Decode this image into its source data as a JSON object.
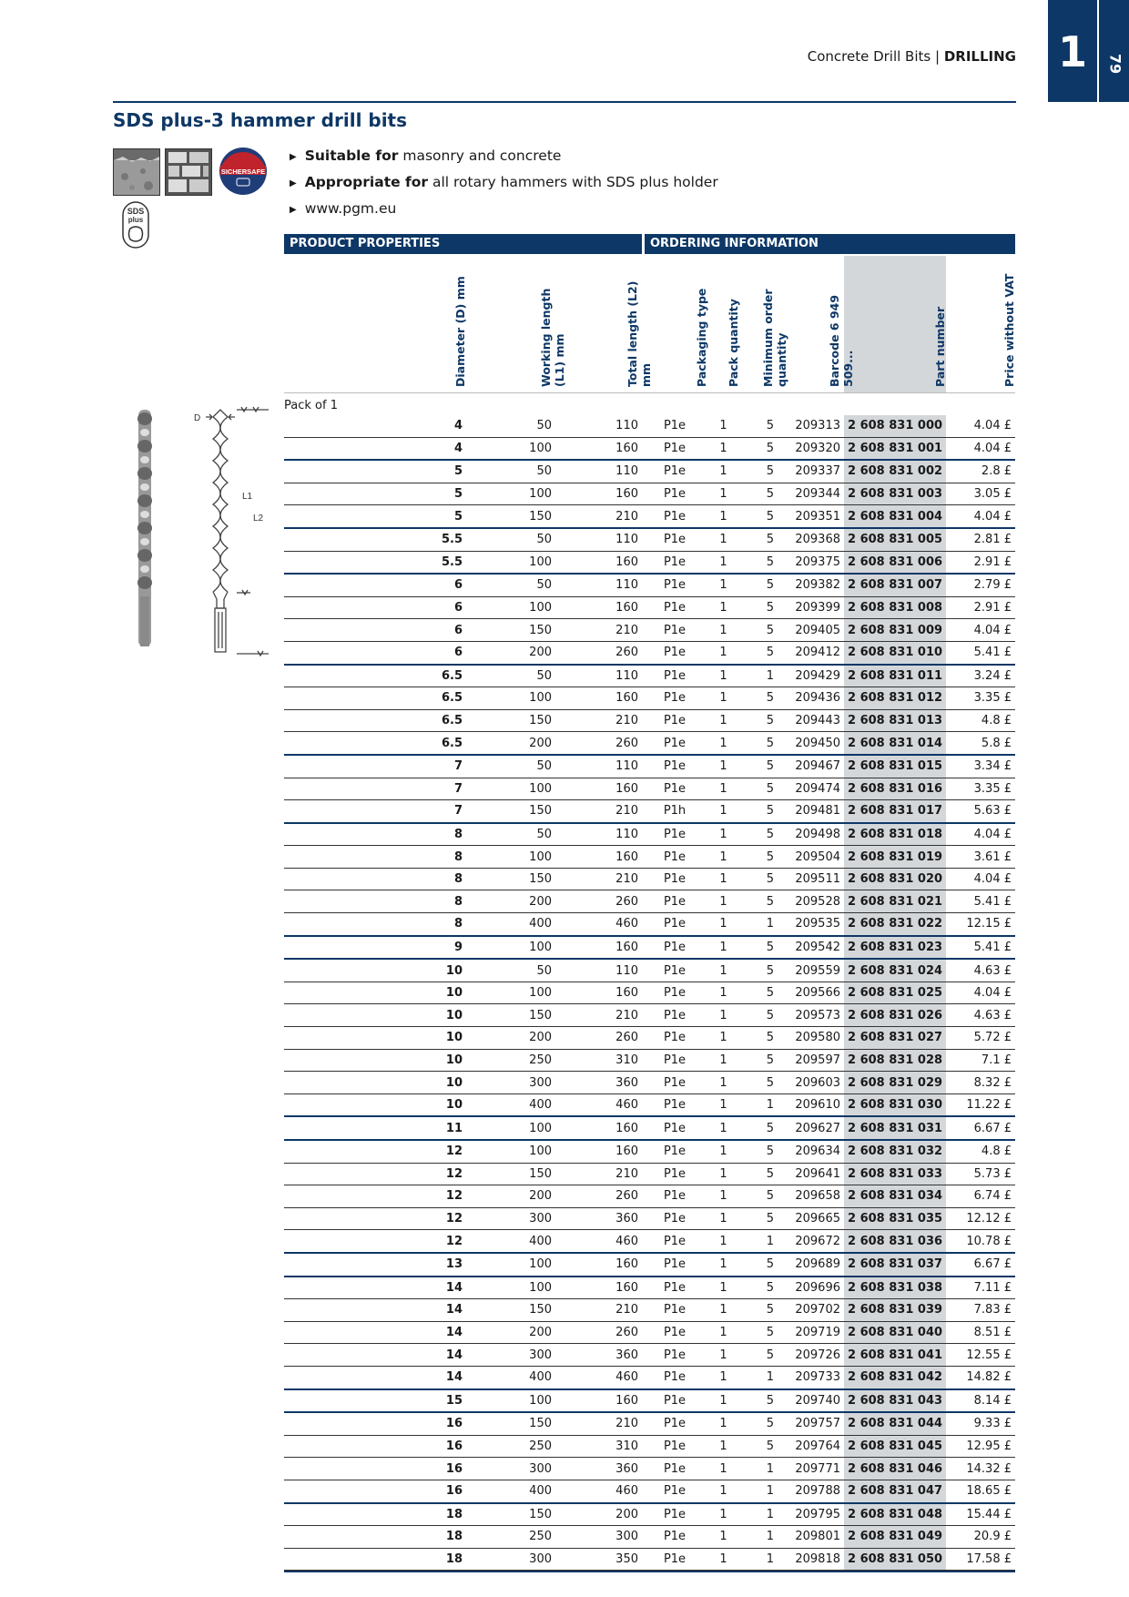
{
  "tab": {
    "chapter": "1",
    "page": "79"
  },
  "header": {
    "category": "Concrete Drill Bits",
    "separator": "|",
    "section": "DRILLING"
  },
  "title": "SDS plus-3 hammer drill bits",
  "icons": [
    "masonry-icon",
    "concrete-icon",
    "sicher-safe-badge",
    "sds-plus-icon"
  ],
  "badge_text": "SICHERSAFE",
  "sds_text": "SDS plus",
  "bullets": [
    {
      "bold": "Suitable for",
      "text": " masonry and concrete"
    },
    {
      "bold": "Appropriate for",
      "text": " all rotary hammers with SDS plus holder"
    },
    {
      "bold": "",
      "text": "www.pgm.eu"
    }
  ],
  "sections": {
    "product": "PRODUCT PROPERTIES",
    "ordering": "ORDERING INFORMATION"
  },
  "columns": [
    "Diameter (D) mm",
    "Working length (L1) mm",
    "Total length (L2) mm",
    "Packaging type",
    "Pack quantity",
    "Minimum order quantity",
    "Barcode 6 949 509...",
    "Part number",
    "Price without VAT"
  ],
  "diagram_labels": {
    "d": "D",
    "l1": "L1",
    "l2": "L2"
  },
  "group_label": "Pack of 1",
  "rows": [
    [
      "4",
      "50",
      "110",
      "P1e",
      "1",
      "5",
      "209313",
      "2 608 831 000",
      "4.04 £"
    ],
    [
      "4",
      "100",
      "160",
      "P1e",
      "1",
      "5",
      "209320",
      "2 608 831 001",
      "4.04 £"
    ],
    [
      "5",
      "50",
      "110",
      "P1e",
      "1",
      "5",
      "209337",
      "2 608 831 002",
      "2.8 £"
    ],
    [
      "5",
      "100",
      "160",
      "P1e",
      "1",
      "5",
      "209344",
      "2 608 831 003",
      "3.05 £"
    ],
    [
      "5",
      "150",
      "210",
      "P1e",
      "1",
      "5",
      "209351",
      "2 608 831 004",
      "4.04 £"
    ],
    [
      "5.5",
      "50",
      "110",
      "P1e",
      "1",
      "5",
      "209368",
      "2 608 831 005",
      "2.81 £"
    ],
    [
      "5.5",
      "100",
      "160",
      "P1e",
      "1",
      "5",
      "209375",
      "2 608 831 006",
      "2.91 £"
    ],
    [
      "6",
      "50",
      "110",
      "P1e",
      "1",
      "5",
      "209382",
      "2 608 831 007",
      "2.79 £"
    ],
    [
      "6",
      "100",
      "160",
      "P1e",
      "1",
      "5",
      "209399",
      "2 608 831 008",
      "2.91 £"
    ],
    [
      "6",
      "150",
      "210",
      "P1e",
      "1",
      "5",
      "209405",
      "2 608 831 009",
      "4.04 £"
    ],
    [
      "6",
      "200",
      "260",
      "P1e",
      "1",
      "5",
      "209412",
      "2 608 831 010",
      "5.41 £"
    ],
    [
      "6.5",
      "50",
      "110",
      "P1e",
      "1",
      "1",
      "209429",
      "2 608 831 011",
      "3.24 £"
    ],
    [
      "6.5",
      "100",
      "160",
      "P1e",
      "1",
      "5",
      "209436",
      "2 608 831 012",
      "3.35 £"
    ],
    [
      "6.5",
      "150",
      "210",
      "P1e",
      "1",
      "5",
      "209443",
      "2 608 831 013",
      "4.8 £"
    ],
    [
      "6.5",
      "200",
      "260",
      "P1e",
      "1",
      "5",
      "209450",
      "2 608 831 014",
      "5.8 £"
    ],
    [
      "7",
      "50",
      "110",
      "P1e",
      "1",
      "5",
      "209467",
      "2 608 831 015",
      "3.34 £"
    ],
    [
      "7",
      "100",
      "160",
      "P1e",
      "1",
      "5",
      "209474",
      "2 608 831 016",
      "3.35 £"
    ],
    [
      "7",
      "150",
      "210",
      "P1h",
      "1",
      "5",
      "209481",
      "2 608 831 017",
      "5.63 £"
    ],
    [
      "8",
      "50",
      "110",
      "P1e",
      "1",
      "5",
      "209498",
      "2 608 831 018",
      "4.04 £"
    ],
    [
      "8",
      "100",
      "160",
      "P1e",
      "1",
      "5",
      "209504",
      "2 608 831 019",
      "3.61 £"
    ],
    [
      "8",
      "150",
      "210",
      "P1e",
      "1",
      "5",
      "209511",
      "2 608 831 020",
      "4.04 £"
    ],
    [
      "8",
      "200",
      "260",
      "P1e",
      "1",
      "5",
      "209528",
      "2 608 831 021",
      "5.41 £"
    ],
    [
      "8",
      "400",
      "460",
      "P1e",
      "1",
      "1",
      "209535",
      "2 608 831 022",
      "12.15 £"
    ],
    [
      "9",
      "100",
      "160",
      "P1e",
      "1",
      "5",
      "209542",
      "2 608 831 023",
      "5.41 £"
    ],
    [
      "10",
      "50",
      "110",
      "P1e",
      "1",
      "5",
      "209559",
      "2 608 831 024",
      "4.63 £"
    ],
    [
      "10",
      "100",
      "160",
      "P1e",
      "1",
      "5",
      "209566",
      "2 608 831 025",
      "4.04 £"
    ],
    [
      "10",
      "150",
      "210",
      "P1e",
      "1",
      "5",
      "209573",
      "2 608 831 026",
      "4.63 £"
    ],
    [
      "10",
      "200",
      "260",
      "P1e",
      "1",
      "5",
      "209580",
      "2 608 831 027",
      "5.72 £"
    ],
    [
      "10",
      "250",
      "310",
      "P1e",
      "1",
      "5",
      "209597",
      "2 608 831 028",
      "7.1 £"
    ],
    [
      "10",
      "300",
      "360",
      "P1e",
      "1",
      "5",
      "209603",
      "2 608 831 029",
      "8.32 £"
    ],
    [
      "10",
      "400",
      "460",
      "P1e",
      "1",
      "1",
      "209610",
      "2 608 831 030",
      "11.22 £"
    ],
    [
      "11",
      "100",
      "160",
      "P1e",
      "1",
      "5",
      "209627",
      "2 608 831 031",
      "6.67 £"
    ],
    [
      "12",
      "100",
      "160",
      "P1e",
      "1",
      "5",
      "209634",
      "2 608 831 032",
      "4.8 £"
    ],
    [
      "12",
      "150",
      "210",
      "P1e",
      "1",
      "5",
      "209641",
      "2 608 831 033",
      "5.73 £"
    ],
    [
      "12",
      "200",
      "260",
      "P1e",
      "1",
      "5",
      "209658",
      "2 608 831 034",
      "6.74 £"
    ],
    [
      "12",
      "300",
      "360",
      "P1e",
      "1",
      "5",
      "209665",
      "2 608 831 035",
      "12.12 £"
    ],
    [
      "12",
      "400",
      "460",
      "P1e",
      "1",
      "1",
      "209672",
      "2 608 831 036",
      "10.78 £"
    ],
    [
      "13",
      "100",
      "160",
      "P1e",
      "1",
      "5",
      "209689",
      "2 608 831 037",
      "6.67 £"
    ],
    [
      "14",
      "100",
      "160",
      "P1e",
      "1",
      "5",
      "209696",
      "2 608 831 038",
      "7.11 £"
    ],
    [
      "14",
      "150",
      "210",
      "P1e",
      "1",
      "5",
      "209702",
      "2 608 831 039",
      "7.83 £"
    ],
    [
      "14",
      "200",
      "260",
      "P1e",
      "1",
      "5",
      "209719",
      "2 608 831 040",
      "8.51 £"
    ],
    [
      "14",
      "300",
      "360",
      "P1e",
      "1",
      "5",
      "209726",
      "2 608 831 041",
      "12.55 £"
    ],
    [
      "14",
      "400",
      "460",
      "P1e",
      "1",
      "1",
      "209733",
      "2 608 831 042",
      "14.82 £"
    ],
    [
      "15",
      "100",
      "160",
      "P1e",
      "1",
      "5",
      "209740",
      "2 608 831 043",
      "8.14 £"
    ],
    [
      "16",
      "150",
      "210",
      "P1e",
      "1",
      "5",
      "209757",
      "2 608 831 044",
      "9.33 £"
    ],
    [
      "16",
      "250",
      "310",
      "P1e",
      "1",
      "5",
      "209764",
      "2 608 831 045",
      "12.95 £"
    ],
    [
      "16",
      "300",
      "360",
      "P1e",
      "1",
      "1",
      "209771",
      "2 608 831 046",
      "14.32 £"
    ],
    [
      "16",
      "400",
      "460",
      "P1e",
      "1",
      "1",
      "209788",
      "2 608 831 047",
      "18.65 £"
    ],
    [
      "18",
      "150",
      "200",
      "P1e",
      "1",
      "1",
      "209795",
      "2 608 831 048",
      "15.44 £"
    ],
    [
      "18",
      "250",
      "300",
      "P1e",
      "1",
      "1",
      "209801",
      "2 608 831 049",
      "20.9 £"
    ],
    [
      "18",
      "300",
      "350",
      "P1e",
      "1",
      "1",
      "209818",
      "2 608 831 050",
      "17.58 £"
    ]
  ]
}
